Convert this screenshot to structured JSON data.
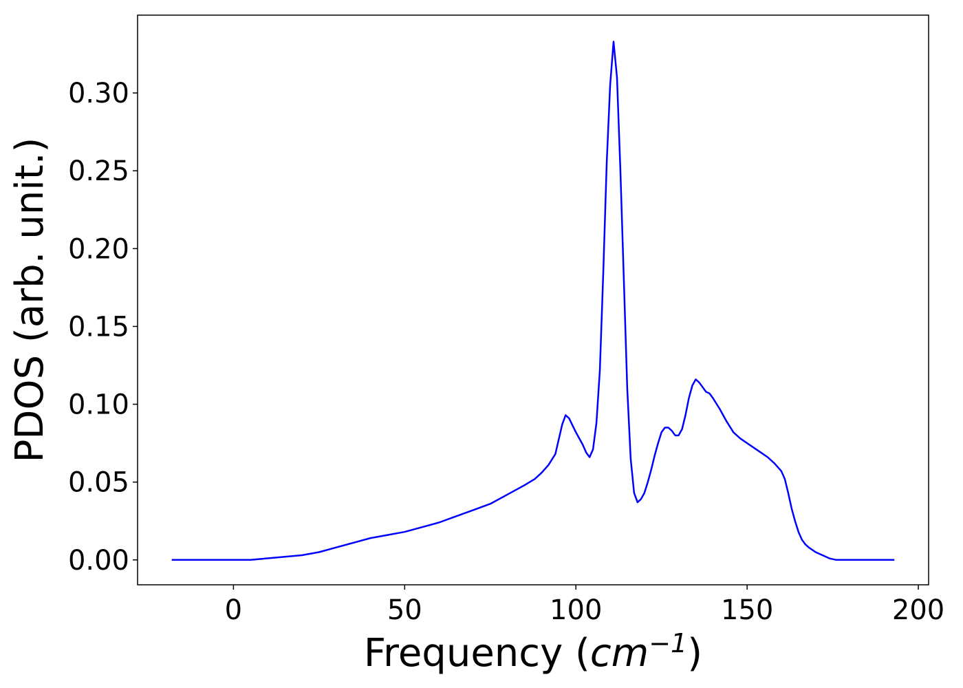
{
  "chart_data": {
    "type": "line",
    "title": "",
    "xlabel_parts": {
      "prefix": "Frequency (",
      "unit_base": "cm",
      "unit_exponent": "−1",
      "suffix": ")"
    },
    "ylabel": "PDOS (arb. unit.)",
    "xlim": [
      -28,
      203
    ],
    "ylim": [
      -0.016,
      0.35
    ],
    "xticks": [
      0,
      50,
      100,
      150,
      200
    ],
    "xtick_labels": [
      "0",
      "50",
      "100",
      "150",
      "200"
    ],
    "yticks": [
      0.0,
      0.05,
      0.1,
      0.15,
      0.2,
      0.25,
      0.3
    ],
    "ytick_labels": [
      "0.00",
      "0.05",
      "0.10",
      "0.15",
      "0.20",
      "0.25",
      "0.30"
    ],
    "grid": false,
    "legend": "none",
    "series": [
      {
        "color": "#0000ff",
        "x": [
          -18,
          0,
          5,
          10,
          15,
          20,
          25,
          30,
          35,
          40,
          45,
          50,
          55,
          60,
          65,
          70,
          75,
          80,
          85,
          88,
          90,
          92,
          94,
          96,
          97,
          98,
          100,
          102,
          103,
          104,
          105,
          106,
          107,
          108,
          109,
          110,
          111,
          112,
          113,
          114,
          115,
          116,
          117,
          118,
          119,
          120,
          121,
          122,
          123,
          124,
          125,
          126,
          127,
          128,
          129,
          130,
          131,
          132,
          133,
          134,
          135,
          136,
          137,
          138,
          139,
          140,
          142,
          144,
          146,
          148,
          150,
          152,
          154,
          156,
          158,
          160,
          161,
          162,
          163,
          164,
          165,
          166,
          167,
          168,
          170,
          172,
          174,
          176,
          178,
          180,
          185,
          193
        ],
        "y": [
          0.0,
          0.0,
          0.0,
          0.001,
          0.002,
          0.003,
          0.005,
          0.008,
          0.011,
          0.014,
          0.016,
          0.018,
          0.021,
          0.024,
          0.028,
          0.032,
          0.036,
          0.042,
          0.048,
          0.052,
          0.056,
          0.061,
          0.068,
          0.087,
          0.093,
          0.091,
          0.082,
          0.074,
          0.069,
          0.066,
          0.071,
          0.088,
          0.122,
          0.185,
          0.255,
          0.305,
          0.333,
          0.31,
          0.25,
          0.18,
          0.11,
          0.065,
          0.043,
          0.037,
          0.039,
          0.043,
          0.05,
          0.058,
          0.067,
          0.075,
          0.082,
          0.085,
          0.085,
          0.083,
          0.08,
          0.08,
          0.084,
          0.093,
          0.104,
          0.112,
          0.116,
          0.114,
          0.111,
          0.108,
          0.107,
          0.104,
          0.097,
          0.089,
          0.082,
          0.078,
          0.075,
          0.072,
          0.069,
          0.066,
          0.062,
          0.057,
          0.052,
          0.043,
          0.033,
          0.025,
          0.018,
          0.013,
          0.01,
          0.008,
          0.005,
          0.003,
          0.001,
          0.0,
          0.0,
          0.0,
          0.0,
          0.0
        ]
      }
    ]
  }
}
